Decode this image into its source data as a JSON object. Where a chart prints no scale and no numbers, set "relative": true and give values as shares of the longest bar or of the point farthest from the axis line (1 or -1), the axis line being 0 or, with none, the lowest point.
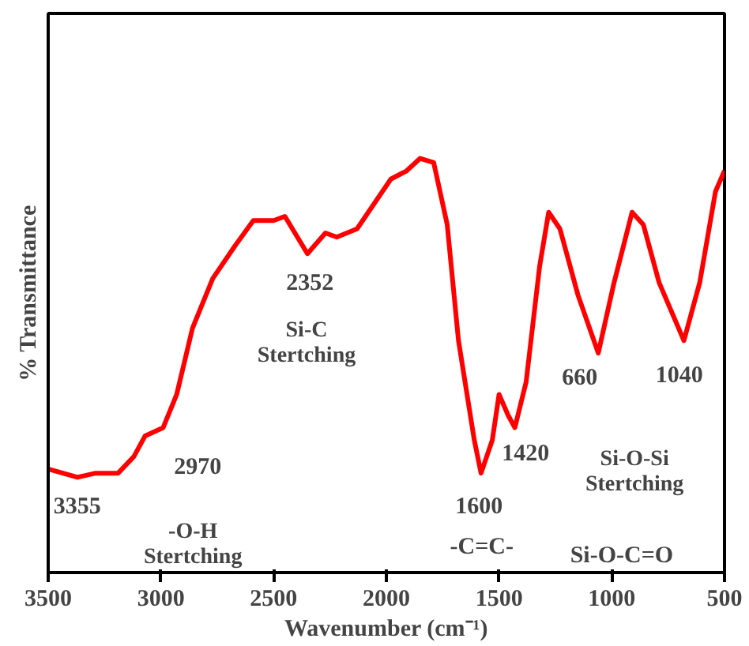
{
  "chart_data": {
    "type": "line",
    "relative": true,
    "xlabel": "Wavenumber (cm⁻¹)",
    "ylabel": "% Transmittance",
    "x": [
      3500,
      3370,
      3290,
      3190,
      3120,
      3070,
      2990,
      2930,
      2860,
      2770,
      2670,
      2590,
      2500,
      2450,
      2350,
      2270,
      2220,
      2130,
      2080,
      1980,
      1910,
      1850,
      1790,
      1730,
      1680,
      1610,
      1580,
      1530,
      1500,
      1460,
      1430,
      1380,
      1320,
      1280,
      1230,
      1150,
      1060,
      990,
      910,
      860,
      790,
      680,
      610,
      540,
      500
    ],
    "series": [
      {
        "color": "#ff0000",
        "values": [
          0.25,
          0.23,
          0.24,
          0.24,
          0.28,
          0.33,
          0.35,
          0.43,
          0.59,
          0.71,
          0.79,
          0.85,
          0.85,
          0.86,
          0.77,
          0.82,
          0.81,
          0.83,
          0.87,
          0.95,
          0.97,
          1.0,
          0.99,
          0.84,
          0.56,
          0.32,
          0.24,
          0.32,
          0.43,
          0.38,
          0.35,
          0.46,
          0.74,
          0.87,
          0.83,
          0.67,
          0.53,
          0.7,
          0.87,
          0.84,
          0.7,
          0.56,
          0.7,
          0.92,
          0.97
        ]
      }
    ],
    "xlim": [
      3500,
      500
    ],
    "xticks": [
      3500,
      3000,
      2500,
      2000,
      1500,
      1000,
      500
    ],
    "grid": false,
    "marker": "none",
    "line_style": "solid",
    "annotations": [
      "3355",
      "2970",
      "-O-H\nStertching",
      "2352",
      "Si-C\nStertching",
      "1600",
      "-C=C-",
      "1420",
      "Si-O-C=O",
      "660",
      "1040",
      "Si-O-Si\nStertching"
    ]
  }
}
